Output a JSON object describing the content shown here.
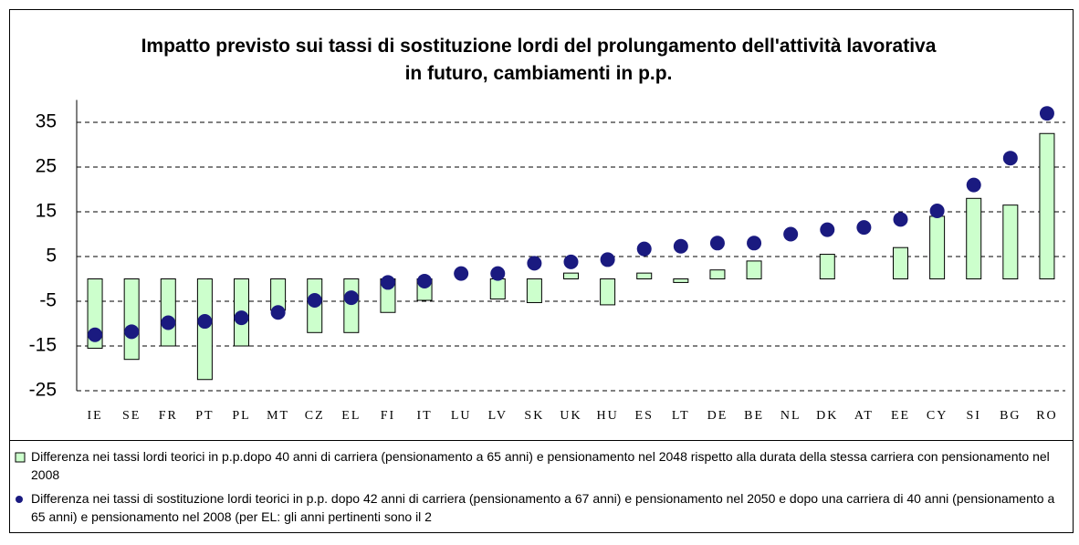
{
  "chart_data": {
    "type": "bar",
    "title": "Impatto previsto sui tassi di sostituzione lordi del prolungamento dell'attività lavorativa in futuro, cambiamenti in p.p.",
    "categories": [
      "IE",
      "SE",
      "FR",
      "PT",
      "PL",
      "MT",
      "CZ",
      "EL",
      "FI",
      "IT",
      "LU",
      "LV",
      "SK",
      "UK",
      "HU",
      "ES",
      "LT",
      "DE",
      "BE",
      "NL",
      "DK",
      "AT",
      "EE",
      "CY",
      "SI",
      "BG",
      "RO"
    ],
    "series": [
      {
        "name": "Differenza nei tassi lordi teorici in p.p.dopo 40 anni di carriera (pensionamento a 65 anni) e pensionamento nel 2048 rispetto alla durata della stessa carriera con pensionamento nel 2008",
        "type": "bar",
        "color": "#ccffcc",
        "values": [
          -15.5,
          -18,
          -15,
          -22.5,
          -15,
          -7,
          -12,
          -12,
          -7.5,
          -4.8,
          null,
          -4.5,
          -5.3,
          1.3,
          -5.8,
          1.3,
          -0.8,
          2,
          4,
          null,
          5.5,
          null,
          7,
          14,
          18,
          16.5,
          32.5
        ]
      },
      {
        "name": "Differenza nei tassi di sostituzione lordi teorici in p.p. dopo 42 anni di carriera (pensionamento a 67 anni) e pensionamento nel 2050 e dopo una carriera di 40 anni (pensionamento a 65 anni) e pensionamento nel 2008 (per EL: gli anni pertinenti sono il 2",
        "type": "scatter",
        "color": "#1a1a80",
        "values": [
          -12.5,
          -11.8,
          -9.8,
          -9.5,
          -8.7,
          -7.5,
          -4.8,
          -4.2,
          -0.8,
          -0.5,
          1.2,
          1.2,
          3.5,
          3.8,
          4.3,
          6.7,
          7.3,
          8,
          8,
          10,
          11,
          11.5,
          13.3,
          15.2,
          21,
          27,
          37
        ]
      }
    ],
    "ylim": [
      -25,
      40
    ],
    "yticks": [
      -25,
      -15,
      -5,
      5,
      15,
      25,
      35
    ],
    "grid": true
  }
}
